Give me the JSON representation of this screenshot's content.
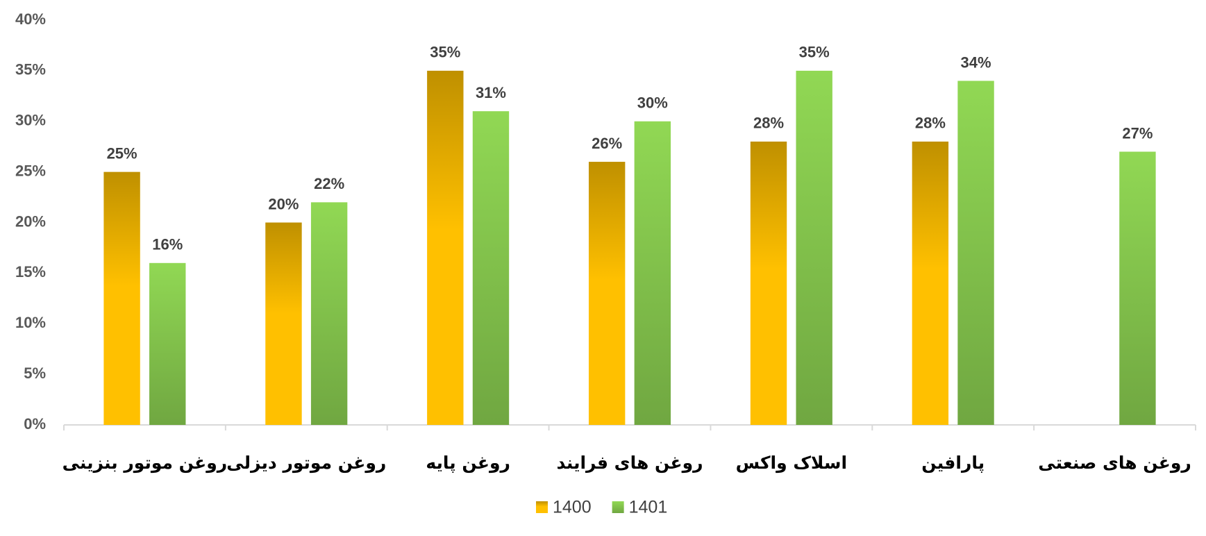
{
  "chart_data": {
    "type": "bar",
    "categories": [
      "روغن موتور بنزینی",
      "روغن موتور دیزلی",
      "روغن پایه",
      "روغن های فرایند",
      "اسلاک واکس",
      "پارافین",
      "روغن های صنعتی"
    ],
    "series": [
      {
        "name": "1400",
        "color": "#ffc000",
        "values": [
          25,
          20,
          35,
          26,
          28,
          28,
          null
        ],
        "value_labels": [
          "25%",
          "20%",
          "35%",
          "26%",
          "28%",
          "28%",
          null
        ]
      },
      {
        "name": "1401",
        "color": "#84c44c",
        "values": [
          16,
          22,
          31,
          30,
          35,
          34,
          27
        ],
        "value_labels": [
          "16%",
          "22%",
          "31%",
          "30%",
          "35%",
          "34%",
          "27%"
        ]
      }
    ],
    "ylim": [
      0,
      40
    ],
    "yticks": [
      {
        "value": 0,
        "label": "0%"
      },
      {
        "value": 5,
        "label": "5%"
      },
      {
        "value": 10,
        "label": "10%"
      },
      {
        "value": 15,
        "label": "15%"
      },
      {
        "value": 20,
        "label": "20%"
      },
      {
        "value": 25,
        "label": "25%"
      },
      {
        "value": 30,
        "label": "30%"
      },
      {
        "value": 35,
        "label": "35%"
      },
      {
        "value": 40,
        "label": "40%"
      }
    ],
    "grid": false,
    "legend": "bottom"
  }
}
